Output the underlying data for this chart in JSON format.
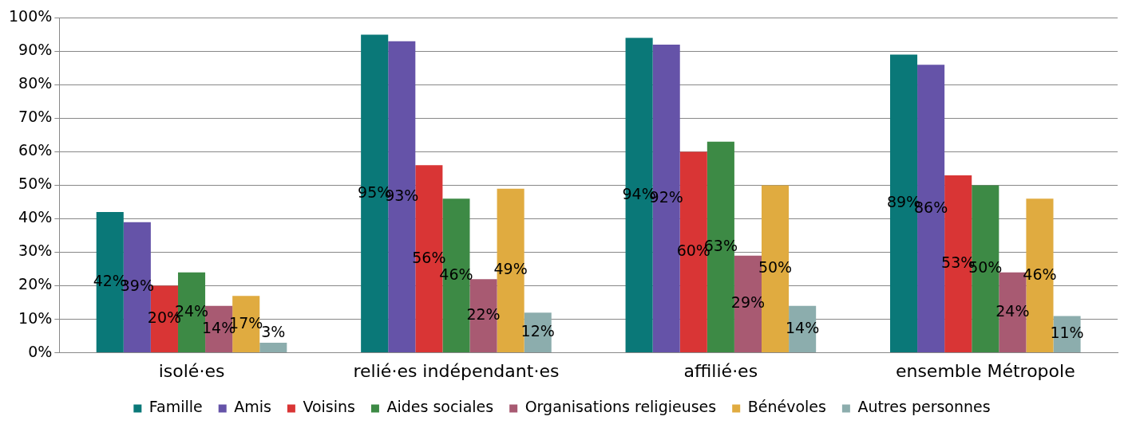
{
  "chart_data": {
    "type": "bar",
    "categories": [
      "isolé·es",
      "relié·es indépendant·es",
      "affilié·es",
      "ensemble Métropole"
    ],
    "series": [
      {
        "name": "Famille",
        "color": "#0a7878",
        "values": [
          42,
          95,
          94,
          89
        ],
        "value_labels": [
          "42%",
          "95%",
          "94%",
          "89%"
        ]
      },
      {
        "name": "Amis",
        "color": "#6553a8",
        "values": [
          39,
          93,
          92,
          86
        ],
        "value_labels": [
          "39%",
          "93%",
          "92%",
          "86%"
        ]
      },
      {
        "name": "Voisins",
        "color": "#d93535",
        "values": [
          20,
          56,
          60,
          53
        ],
        "value_labels": [
          "20%",
          "56%",
          "60%",
          "53%"
        ]
      },
      {
        "name": "Aides sociales",
        "color": "#3d8a45",
        "values": [
          24,
          46,
          63,
          50
        ],
        "value_labels": [
          "24%",
          "46%",
          "63%",
          "50%"
        ]
      },
      {
        "name": "Organisations religieuses",
        "color": "#a85a72",
        "values": [
          14,
          22,
          29,
          24
        ],
        "value_labels": [
          "14%",
          "22%",
          "29%",
          "24%"
        ]
      },
      {
        "name": "Bénévoles",
        "color": "#e0ab40",
        "values": [
          17,
          49,
          50,
          46
        ],
        "value_labels": [
          "17%",
          "49%",
          "50%",
          "46%"
        ]
      },
      {
        "name": "Autres personnes",
        "color": "#8cadad",
        "values": [
          3,
          12,
          14,
          11
        ],
        "value_labels": [
          "3%",
          "12%",
          "14%",
          "11%"
        ]
      }
    ],
    "ylim": [
      0,
      100
    ],
    "yticks": [
      {
        "value": 0,
        "label": "0%"
      },
      {
        "value": 10,
        "label": "10%"
      },
      {
        "value": 20,
        "label": "20%"
      },
      {
        "value": 30,
        "label": "30%"
      },
      {
        "value": 40,
        "label": "40%"
      },
      {
        "value": 50,
        "label": "50%"
      },
      {
        "value": 60,
        "label": "60%"
      },
      {
        "value": 70,
        "label": "70%"
      },
      {
        "value": 80,
        "label": "80%"
      },
      {
        "value": 90,
        "label": "90%"
      },
      {
        "value": 100,
        "label": "100%"
      }
    ],
    "grid": "y",
    "legend": "bottom"
  }
}
